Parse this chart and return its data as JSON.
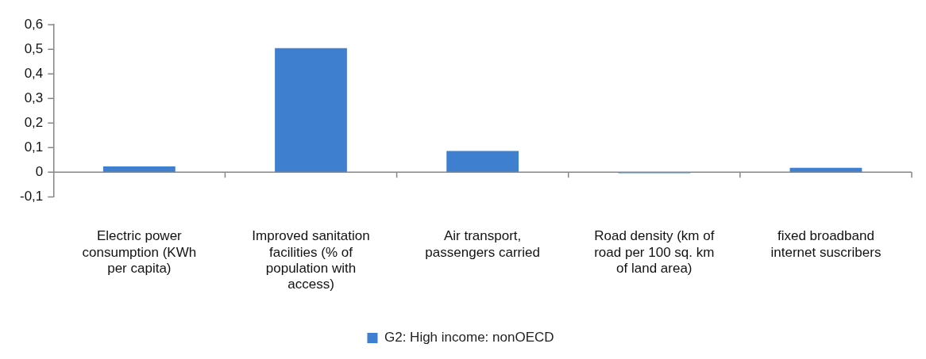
{
  "chart_data": {
    "type": "bar",
    "categories": [
      "Electric power consumption (KWh per capita)",
      "Improved sanitation facilities (% of population with access)",
      "Air transport, passengers carried",
      "Road density (km of road per 100 sq. km of land area)",
      "fixed broadband internet suscribers"
    ],
    "series": [
      {
        "name": "G2: High income: nonOECD",
        "color": "#3f7fcf",
        "values": [
          0.024,
          0.505,
          0.087,
          -0.004,
          0.018
        ]
      }
    ],
    "ylim": [
      -0.1,
      0.6
    ],
    "yticks": [
      {
        "value": -0.1,
        "label": "-0,1"
      },
      {
        "value": 0,
        "label": "0"
      },
      {
        "value": 0.1,
        "label": "0,1"
      },
      {
        "value": 0.2,
        "label": "0,2"
      },
      {
        "value": 0.3,
        "label": "0,3"
      },
      {
        "value": 0.4,
        "label": "0,4"
      },
      {
        "value": 0.5,
        "label": "0,5"
      },
      {
        "value": 0.6,
        "label": "0,6"
      }
    ],
    "legend": "bottom"
  }
}
